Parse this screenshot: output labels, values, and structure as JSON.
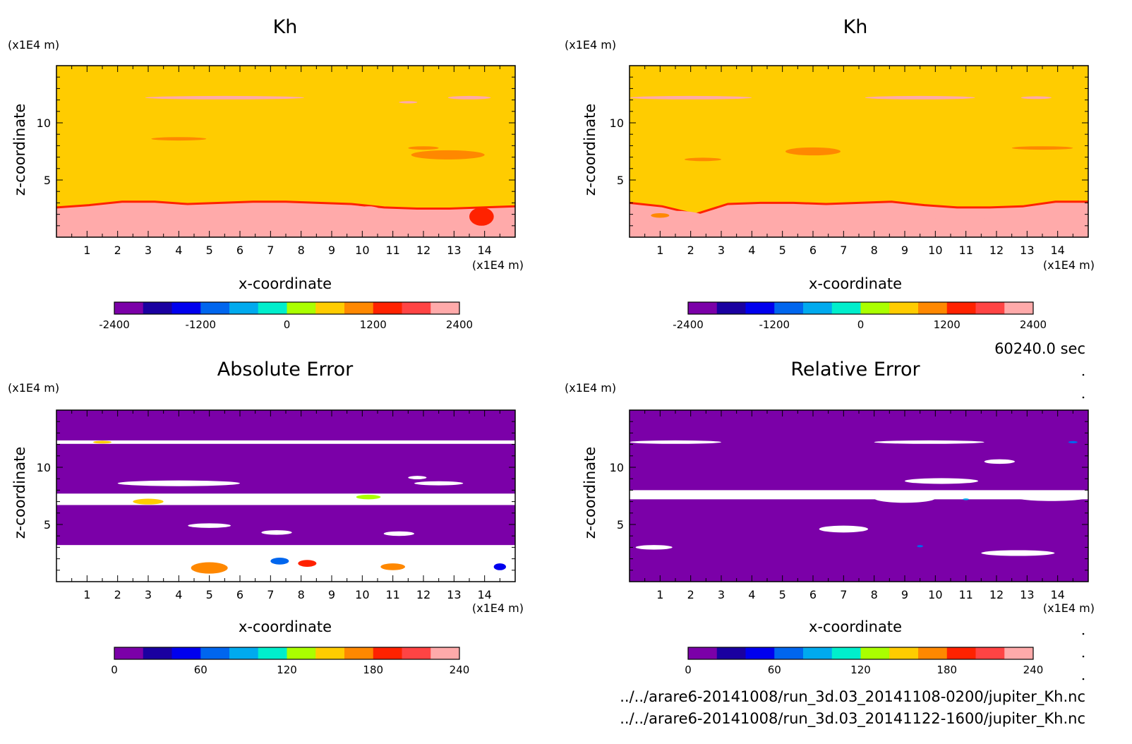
{
  "time_label": "60240.0 sec",
  "file_paths": [
    "../../arare6-20141008/run_3d.03_20141108-0200/jupiter_Kh.nc",
    "../../arare6-20141008/run_3d.03_20141122-1600/jupiter_Kh.nc"
  ],
  "colors": {
    "levels": [
      "#7b00a8",
      "#1a00a0",
      "#0000ee",
      "#0066ee",
      "#00aaee",
      "#00eecc",
      "#aaff00",
      "#ffcc00",
      "#ff8800",
      "#ff2200",
      "#ff4444",
      "#ffaaaa"
    ],
    "plot_background": "#ffffff"
  },
  "chart_data": [
    {
      "type": "heatmap",
      "title": "Kh",
      "xlabel": "x-coordinate",
      "ylabel": "z-coordinate",
      "x_unit": "(x1E4 m)",
      "y_unit": "(x1E4 m)",
      "xlim": [
        0,
        15
      ],
      "ylim": [
        0,
        15
      ],
      "x_ticks": [
        1,
        2,
        3,
        4,
        5,
        6,
        7,
        8,
        9,
        10,
        11,
        12,
        13,
        14
      ],
      "y_ticks": [
        5,
        10
      ],
      "colorbar": {
        "range": [
          -2400,
          2400
        ],
        "tick_values": [
          -2400,
          -1200,
          0,
          1200,
          2400
        ]
      },
      "background_value": 480,
      "lower_layer": {
        "value": 2300,
        "top_z": [
          2.6,
          2.8,
          3.1,
          3.1,
          2.9,
          3.0,
          3.1,
          3.1,
          3.0,
          2.9,
          2.6,
          2.5,
          2.5,
          2.6,
          2.7
        ]
      },
      "regions": [
        {
          "x": 1.0,
          "z": 0.9,
          "rx": 0.5,
          "rz": 0.4,
          "value": 2000
        },
        {
          "x": 6.0,
          "z": 1.4,
          "rx": 0.7,
          "rz": 0.4,
          "value": 2000
        },
        {
          "x": 8.5,
          "z": 1.8,
          "rx": 0.6,
          "rz": 0.5,
          "value": 2000
        },
        {
          "x": 10.2,
          "z": 2.1,
          "rx": 0.5,
          "rz": 0.6,
          "value": 2000
        },
        {
          "x": 13.9,
          "z": 1.8,
          "rx": 0.4,
          "rz": 0.8,
          "value": 1500
        },
        {
          "x": 5.5,
          "z": 12.2,
          "rx": 2.6,
          "rz": 0.15,
          "value": 2000
        },
        {
          "x": 13.5,
          "z": 12.2,
          "rx": 0.7,
          "rz": 0.15,
          "value": 2000
        },
        {
          "x": 11.5,
          "z": 11.8,
          "rx": 0.3,
          "rz": 0.1,
          "value": 2000
        },
        {
          "x": 12.8,
          "z": 7.2,
          "rx": 1.2,
          "rz": 0.4,
          "value": 900
        },
        {
          "x": 4.0,
          "z": 8.6,
          "rx": 0.9,
          "rz": 0.15,
          "value": 900
        },
        {
          "x": 12.0,
          "z": 7.8,
          "rx": 0.5,
          "rz": 0.15,
          "value": 900
        }
      ]
    },
    {
      "type": "heatmap",
      "title": "Kh",
      "xlabel": "x-coordinate",
      "ylabel": "z-coordinate",
      "x_unit": "(x1E4 m)",
      "y_unit": "(x1E4 m)",
      "xlim": [
        0,
        15
      ],
      "ylim": [
        0,
        15
      ],
      "x_ticks": [
        1,
        2,
        3,
        4,
        5,
        6,
        7,
        8,
        9,
        10,
        11,
        12,
        13,
        14
      ],
      "y_ticks": [
        5,
        10
      ],
      "colorbar": {
        "range": [
          -2400,
          2400
        ],
        "tick_values": [
          -2400,
          -1200,
          0,
          1200,
          2400
        ]
      },
      "background_value": 480,
      "lower_layer": {
        "value": 2300,
        "top_z": [
          3.0,
          2.7,
          2.0,
          2.9,
          3.0,
          3.0,
          2.9,
          3.0,
          3.1,
          2.8,
          2.6,
          2.6,
          2.7,
          3.1,
          3.1
        ]
      },
      "regions": [
        {
          "x": 1.5,
          "z": 1.7,
          "rx": 1.0,
          "rz": 0.6,
          "value": 2000
        },
        {
          "x": 5.0,
          "z": 1.3,
          "rx": 1.2,
          "rz": 0.7,
          "value": 2000
        },
        {
          "x": 10.8,
          "z": 1.6,
          "rx": 0.8,
          "rz": 0.3,
          "value": 2000
        },
        {
          "x": 13.9,
          "z": 2.4,
          "rx": 0.5,
          "rz": 0.4,
          "value": 2000
        },
        {
          "x": 1.0,
          "z": 1.9,
          "rx": 0.3,
          "rz": 0.2,
          "value": 1000
        },
        {
          "x": 2.0,
          "z": 12.2,
          "rx": 2.0,
          "rz": 0.15,
          "value": 2000
        },
        {
          "x": 9.5,
          "z": 12.2,
          "rx": 1.8,
          "rz": 0.15,
          "value": 2000
        },
        {
          "x": 13.3,
          "z": 12.2,
          "rx": 0.5,
          "rz": 0.12,
          "value": 2000
        },
        {
          "x": 6.0,
          "z": 7.5,
          "rx": 0.9,
          "rz": 0.35,
          "value": 900
        },
        {
          "x": 13.5,
          "z": 7.8,
          "rx": 1.0,
          "rz": 0.15,
          "value": 900
        },
        {
          "x": 2.4,
          "z": 6.8,
          "rx": 0.6,
          "rz": 0.15,
          "value": 900
        }
      ]
    },
    {
      "type": "heatmap",
      "title": "Absolute Error",
      "xlabel": "x-coordinate",
      "ylabel": "z-coordinate",
      "x_unit": "(x1E4 m)",
      "y_unit": "(x1E4 m)",
      "xlim": [
        0,
        15
      ],
      "ylim": [
        0,
        15
      ],
      "x_ticks": [
        1,
        2,
        3,
        4,
        5,
        6,
        7,
        8,
        9,
        10,
        11,
        12,
        13,
        14
      ],
      "y_ticks": [
        5,
        10
      ],
      "colorbar": {
        "range": [
          0,
          240
        ],
        "tick_values": [
          0,
          60,
          120,
          180,
          240
        ]
      },
      "background_value": 10,
      "out_of_range_color": "#ffffff",
      "white_bands": [
        {
          "z": 12.2,
          "half": 0.15
        },
        {
          "z": 7.2,
          "half": 0.5
        },
        {
          "z": 1.6,
          "half": 1.6
        }
      ],
      "regions": [
        {
          "x": 4.0,
          "z": 8.6,
          "rx": 2.0,
          "rz": 0.25,
          "value": 250
        },
        {
          "x": 5.0,
          "z": 4.9,
          "rx": 0.7,
          "rz": 0.2,
          "value": 250
        },
        {
          "x": 7.2,
          "z": 4.3,
          "rx": 0.5,
          "rz": 0.2,
          "value": 250
        },
        {
          "x": 11.2,
          "z": 4.2,
          "rx": 0.5,
          "rz": 0.2,
          "value": 250
        },
        {
          "x": 11.8,
          "z": 9.1,
          "rx": 0.3,
          "rz": 0.15,
          "value": 250
        },
        {
          "x": 12.5,
          "z": 8.6,
          "rx": 0.8,
          "rz": 0.18,
          "value": 250
        },
        {
          "x": 1.5,
          "z": 12.2,
          "rx": 0.3,
          "rz": 0.12,
          "value": 150
        },
        {
          "x": 3.0,
          "z": 7.0,
          "rx": 0.5,
          "rz": 0.25,
          "value": 140
        },
        {
          "x": 5.0,
          "z": 1.2,
          "rx": 0.6,
          "rz": 0.5,
          "value": 160
        },
        {
          "x": 7.3,
          "z": 1.8,
          "rx": 0.3,
          "rz": 0.3,
          "value": 60
        },
        {
          "x": 8.2,
          "z": 1.6,
          "rx": 0.3,
          "rz": 0.3,
          "value": 190
        },
        {
          "x": 11.0,
          "z": 1.3,
          "rx": 0.4,
          "rz": 0.3,
          "value": 170
        },
        {
          "x": 14.5,
          "z": 1.3,
          "rx": 0.2,
          "rz": 0.3,
          "value": 50
        },
        {
          "x": 10.2,
          "z": 7.4,
          "rx": 0.4,
          "rz": 0.2,
          "value": 130
        }
      ]
    },
    {
      "type": "heatmap",
      "title": "Relative Error",
      "xlabel": "x-coordinate",
      "ylabel": "z-coordinate",
      "x_unit": "(x1E4 m)",
      "y_unit": "(x1E4 m)",
      "xlim": [
        0,
        15
      ],
      "ylim": [
        0,
        15
      ],
      "x_ticks": [
        1,
        2,
        3,
        4,
        5,
        6,
        7,
        8,
        9,
        10,
        11,
        12,
        13,
        14
      ],
      "y_ticks": [
        5,
        10
      ],
      "colorbar": {
        "range": [
          0,
          240
        ],
        "tick_values": [
          0,
          60,
          120,
          180,
          240
        ]
      },
      "background_value": 10,
      "out_of_range_color": "#ffffff",
      "white_bands": [
        {
          "z": 7.6,
          "half": 0.4
        }
      ],
      "regions": [
        {
          "x": 1.5,
          "z": 12.2,
          "rx": 1.5,
          "rz": 0.15,
          "value": 250
        },
        {
          "x": 9.8,
          "z": 12.2,
          "rx": 1.8,
          "rz": 0.15,
          "value": 250
        },
        {
          "x": 12.1,
          "z": 10.5,
          "rx": 0.5,
          "rz": 0.2,
          "value": 250
        },
        {
          "x": 10.2,
          "z": 8.8,
          "rx": 1.2,
          "rz": 0.25,
          "value": 250
        },
        {
          "x": 9.0,
          "z": 7.3,
          "rx": 1.0,
          "rz": 0.4,
          "value": 250
        },
        {
          "x": 13.8,
          "z": 7.4,
          "rx": 1.2,
          "rz": 0.35,
          "value": 250
        },
        {
          "x": 7.0,
          "z": 4.6,
          "rx": 0.8,
          "rz": 0.3,
          "value": 250
        },
        {
          "x": 0.8,
          "z": 3.0,
          "rx": 0.6,
          "rz": 0.2,
          "value": 250
        },
        {
          "x": 12.7,
          "z": 2.5,
          "rx": 1.2,
          "rz": 0.25,
          "value": 250
        },
        {
          "x": 9.5,
          "z": 3.1,
          "rx": 0.1,
          "rz": 0.1,
          "value": 70
        },
        {
          "x": 11.0,
          "z": 7.2,
          "rx": 0.1,
          "rz": 0.08,
          "value": 80
        },
        {
          "x": 14.5,
          "z": 12.2,
          "rx": 0.15,
          "rz": 0.1,
          "value": 60
        }
      ]
    }
  ]
}
